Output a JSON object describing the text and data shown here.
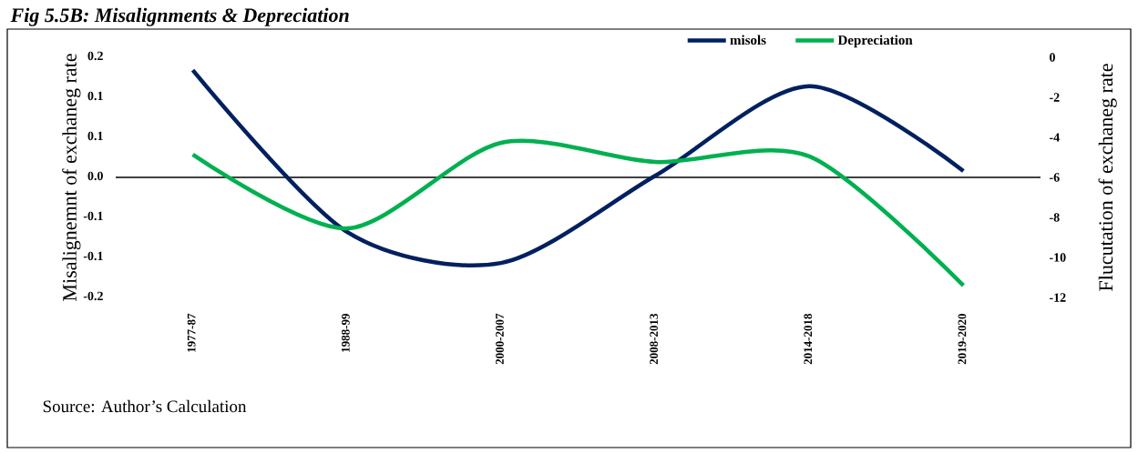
{
  "chart_data": {
    "type": "line",
    "title": "Fig 5.5B: Misalignments & Depreciation",
    "ylabel": "Misalignemnt of exchaneg rate",
    "y2label": "Flucutation of exchaneg rate",
    "categories": [
      "1977-87",
      "1988-99",
      "2000-2007",
      "2008-2013",
      "2014-2018",
      "2019-2020"
    ],
    "series": [
      {
        "name": "misols",
        "color": "#002060",
        "values": [
          0.134,
          -0.068,
          -0.107,
          0.002,
          0.114,
          0.008
        ]
      },
      {
        "name": "Depreciation",
        "color": "#00b050",
        "axis": "y2",
        "values": [
          -4.86,
          -8.55,
          -4.27,
          -5.23,
          -4.95,
          -11.4
        ]
      }
    ],
    "ylim": [
      -0.15,
      0.15
    ],
    "yticks": [
      {
        "value": -0.15,
        "label": "-0.2"
      },
      {
        "value": -0.1,
        "label": "-0.1"
      },
      {
        "value": -0.05,
        "label": "-0.1"
      },
      {
        "value": 0,
        "label": "0.0"
      },
      {
        "value": 0.05,
        "label": "0.1"
      },
      {
        "value": 0.1,
        "label": "0.1"
      },
      {
        "value": 0.15,
        "label": "0.2"
      }
    ],
    "y2lim": [
      -12,
      0
    ],
    "y2ticks": [
      -12,
      -10,
      -8,
      -6,
      -4,
      -2,
      0
    ],
    "ref_lines": [
      {
        "axis": "y",
        "value": 0,
        "color": "#000000"
      }
    ],
    "legend": "top right",
    "annotations": [
      "Source: Author’s Calculation"
    ]
  }
}
